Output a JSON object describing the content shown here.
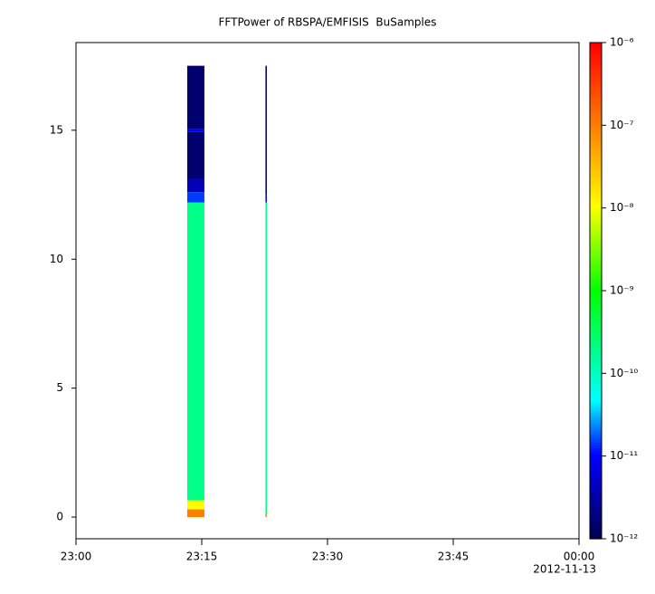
{
  "chart_data": {
    "type": "spectrogram",
    "title": "FFTPower of RBSPA/EMFISIS  BuSamples",
    "xlim": [
      "23:00:00",
      "00:00:00"
    ],
    "xticks": [
      {
        "value": "23:00:00",
        "label": "23:00"
      },
      {
        "value": "23:15:00",
        "label": "23:15"
      },
      {
        "value": "23:30:00",
        "label": "23:30"
      },
      {
        "value": "23:45:00",
        "label": "23:45"
      },
      {
        "value": "00:00:00",
        "label": "00:00"
      }
    ],
    "date_label": "2012-11-13",
    "ylim": [
      -0.84,
      18.4
    ],
    "yticks": [
      0,
      5,
      10,
      15
    ],
    "zlim": [
      1e-12,
      1e-06
    ],
    "zlog": true,
    "zticks": [
      {
        "value": 1e-12,
        "label": "10⁻¹²"
      },
      {
        "value": 1e-11,
        "label": "10⁻¹¹"
      },
      {
        "value": 1e-10,
        "label": "10⁻¹⁰"
      },
      {
        "value": 1e-09,
        "label": "10⁻⁹"
      },
      {
        "value": 1e-08,
        "label": "10⁻⁸"
      },
      {
        "value": 1e-07,
        "label": "10⁻⁷"
      },
      {
        "value": 1e-06,
        "label": "10⁻⁶"
      }
    ],
    "columns": [
      {
        "start": "23:13:16",
        "end": "23:15:19",
        "bands": [
          {
            "y0": 0,
            "y1": 0.3,
            "value": 1e-07
          },
          {
            "y0": 0.3,
            "y1": 0.65,
            "value": 1e-08
          },
          {
            "y0": 0.65,
            "y1": 12.2,
            "value": 2e-10
          },
          {
            "y0": 12.2,
            "y1": 12.6,
            "value": 1.5e-11
          },
          {
            "y0": 12.6,
            "y1": 13.1,
            "value": 4e-12
          },
          {
            "y0": 13.1,
            "y1": 14.95,
            "value": 1.5e-12
          },
          {
            "y0": 14.95,
            "y1": 15.05,
            "value": 1e-11
          },
          {
            "y0": 15.05,
            "y1": 17.5,
            "value": 1.5e-12
          }
        ]
      },
      {
        "start": "23:22:36",
        "end": "23:22:46",
        "bands": [
          {
            "y0": 0,
            "y1": 0.1,
            "value": 1e-07
          },
          {
            "y0": 0.1,
            "y1": 12.2,
            "value": 2e-10
          },
          {
            "y0": 12.2,
            "y1": 12.5,
            "value": 1e-11
          },
          {
            "y0": 12.5,
            "y1": 17.5,
            "value": 1.2e-12
          }
        ]
      }
    ]
  }
}
